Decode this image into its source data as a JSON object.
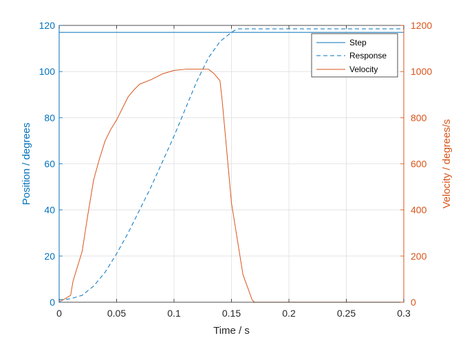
{
  "chart_data": {
    "type": "line",
    "xlabel": "Time / s",
    "ylabel_left": "Position / degrees",
    "ylabel_right": "Velocity / degrees/s",
    "xlim": [
      0,
      0.3
    ],
    "ylim_left": [
      0,
      120
    ],
    "ylim_right": [
      0,
      1200
    ],
    "x_ticks": [
      "0",
      "0.05",
      "0.1",
      "0.15",
      "0.2",
      "0.25",
      "0.3"
    ],
    "y_left_ticks": [
      "0",
      "20",
      "40",
      "60",
      "80",
      "100",
      "120"
    ],
    "y_right_ticks": [
      "0",
      "200",
      "400",
      "600",
      "800",
      "1000",
      "1200"
    ],
    "grid": true,
    "legend_position": "top-right",
    "colors": {
      "left_axis": "#0072BD",
      "right_axis": "#D95319",
      "grid": "#dfdfdf",
      "axes": "#262626"
    },
    "series": [
      {
        "name": "Step",
        "axis": "left",
        "style": "solid",
        "color": "#0072BD",
        "x": [
          0,
          0.3
        ],
        "y": [
          117,
          117
        ]
      },
      {
        "name": "Response",
        "axis": "left",
        "style": "dashed",
        "color": "#0072BD",
        "x": [
          0,
          0.01,
          0.02,
          0.03,
          0.04,
          0.05,
          0.06,
          0.07,
          0.08,
          0.09,
          0.1,
          0.11,
          0.12,
          0.13,
          0.14,
          0.15,
          0.155,
          0.16,
          0.2,
          0.25,
          0.3
        ],
        "y": [
          1,
          1.5,
          3,
          7,
          13,
          21,
          30,
          40,
          50,
          61,
          72,
          84,
          96,
          106,
          113,
          117,
          118.5,
          118.5,
          118.5,
          118.5,
          118.5
        ]
      },
      {
        "name": "Velocity",
        "axis": "right",
        "style": "solid",
        "color": "#D95319",
        "x": [
          0,
          0.01,
          0.012,
          0.02,
          0.025,
          0.03,
          0.035,
          0.04,
          0.045,
          0.05,
          0.055,
          0.06,
          0.065,
          0.07,
          0.08,
          0.09,
          0.1,
          0.11,
          0.12,
          0.13,
          0.135,
          0.14,
          0.142,
          0.15,
          0.16,
          0.168,
          0.17,
          0.2,
          0.25,
          0.3
        ],
        "y": [
          0,
          30,
          90,
          220,
          380,
          530,
          620,
          700,
          750,
          790,
          840,
          890,
          920,
          945,
          965,
          990,
          1005,
          1010,
          1010,
          1010,
          990,
          960,
          870,
          430,
          120,
          10,
          0,
          0,
          0,
          0
        ]
      }
    ]
  }
}
